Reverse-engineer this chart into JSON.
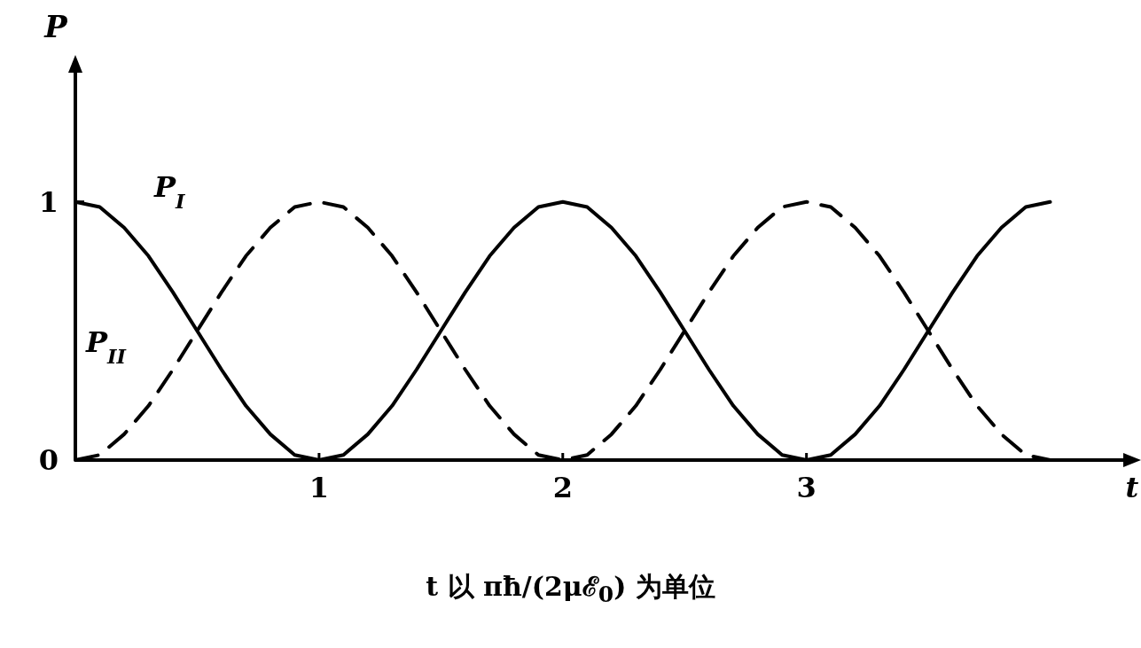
{
  "chart_data": {
    "type": "line",
    "xlabel": "t",
    "ylabel": "P",
    "x": [
      0,
      0.1,
      0.2,
      0.3,
      0.4,
      0.5,
      0.6,
      0.7,
      0.8,
      0.9,
      1,
      1.1,
      1.2,
      1.3,
      1.4,
      1.5,
      1.6,
      1.7,
      1.8,
      1.9,
      2,
      2.1,
      2.2,
      2.3,
      2.4,
      2.5,
      2.6,
      2.7,
      2.8,
      2.9,
      3,
      3.1,
      3.2,
      3.3,
      3.4,
      3.5,
      3.6,
      3.7,
      3.8,
      3.9,
      4
    ],
    "series": [
      {
        "name": "P$_{I}$",
        "color": "#000000",
        "line_style": "solid",
        "values": [
          1,
          0.98,
          0.9,
          0.79,
          0.65,
          0.5,
          0.35,
          0.21,
          0.1,
          0.02,
          0,
          0.02,
          0.1,
          0.21,
          0.35,
          0.5,
          0.65,
          0.79,
          0.9,
          0.98,
          1,
          0.98,
          0.9,
          0.79,
          0.65,
          0.5,
          0.35,
          0.21,
          0.1,
          0.02,
          0,
          0.02,
          0.1,
          0.21,
          0.35,
          0.5,
          0.65,
          0.79,
          0.9,
          0.98,
          1
        ]
      },
      {
        "name": "P$_{II}$",
        "color": "#000000",
        "line_style": "dashed",
        "values": [
          0,
          0.02,
          0.1,
          0.21,
          0.35,
          0.5,
          0.65,
          0.79,
          0.9,
          0.98,
          1,
          0.98,
          0.9,
          0.79,
          0.65,
          0.5,
          0.35,
          0.21,
          0.1,
          0.02,
          0,
          0.02,
          0.1,
          0.21,
          0.35,
          0.5,
          0.65,
          0.79,
          0.9,
          0.98,
          1,
          0.98,
          0.9,
          0.79,
          0.65,
          0.5,
          0.35,
          0.21,
          0.1,
          0.02,
          0
        ]
      }
    ],
    "xlim": [
      0,
      4.3
    ],
    "ylim": [
      0,
      1.5
    ],
    "xticks": [
      {
        "value": 0,
        "label": null
      },
      1,
      2,
      3
    ],
    "yticks": [
      0,
      1
    ],
    "marker": "none",
    "grid": false,
    "legend": false,
    "annotations": [
      "t 以 πħ/(2μℰ$_{0}$) 为单位"
    ]
  }
}
